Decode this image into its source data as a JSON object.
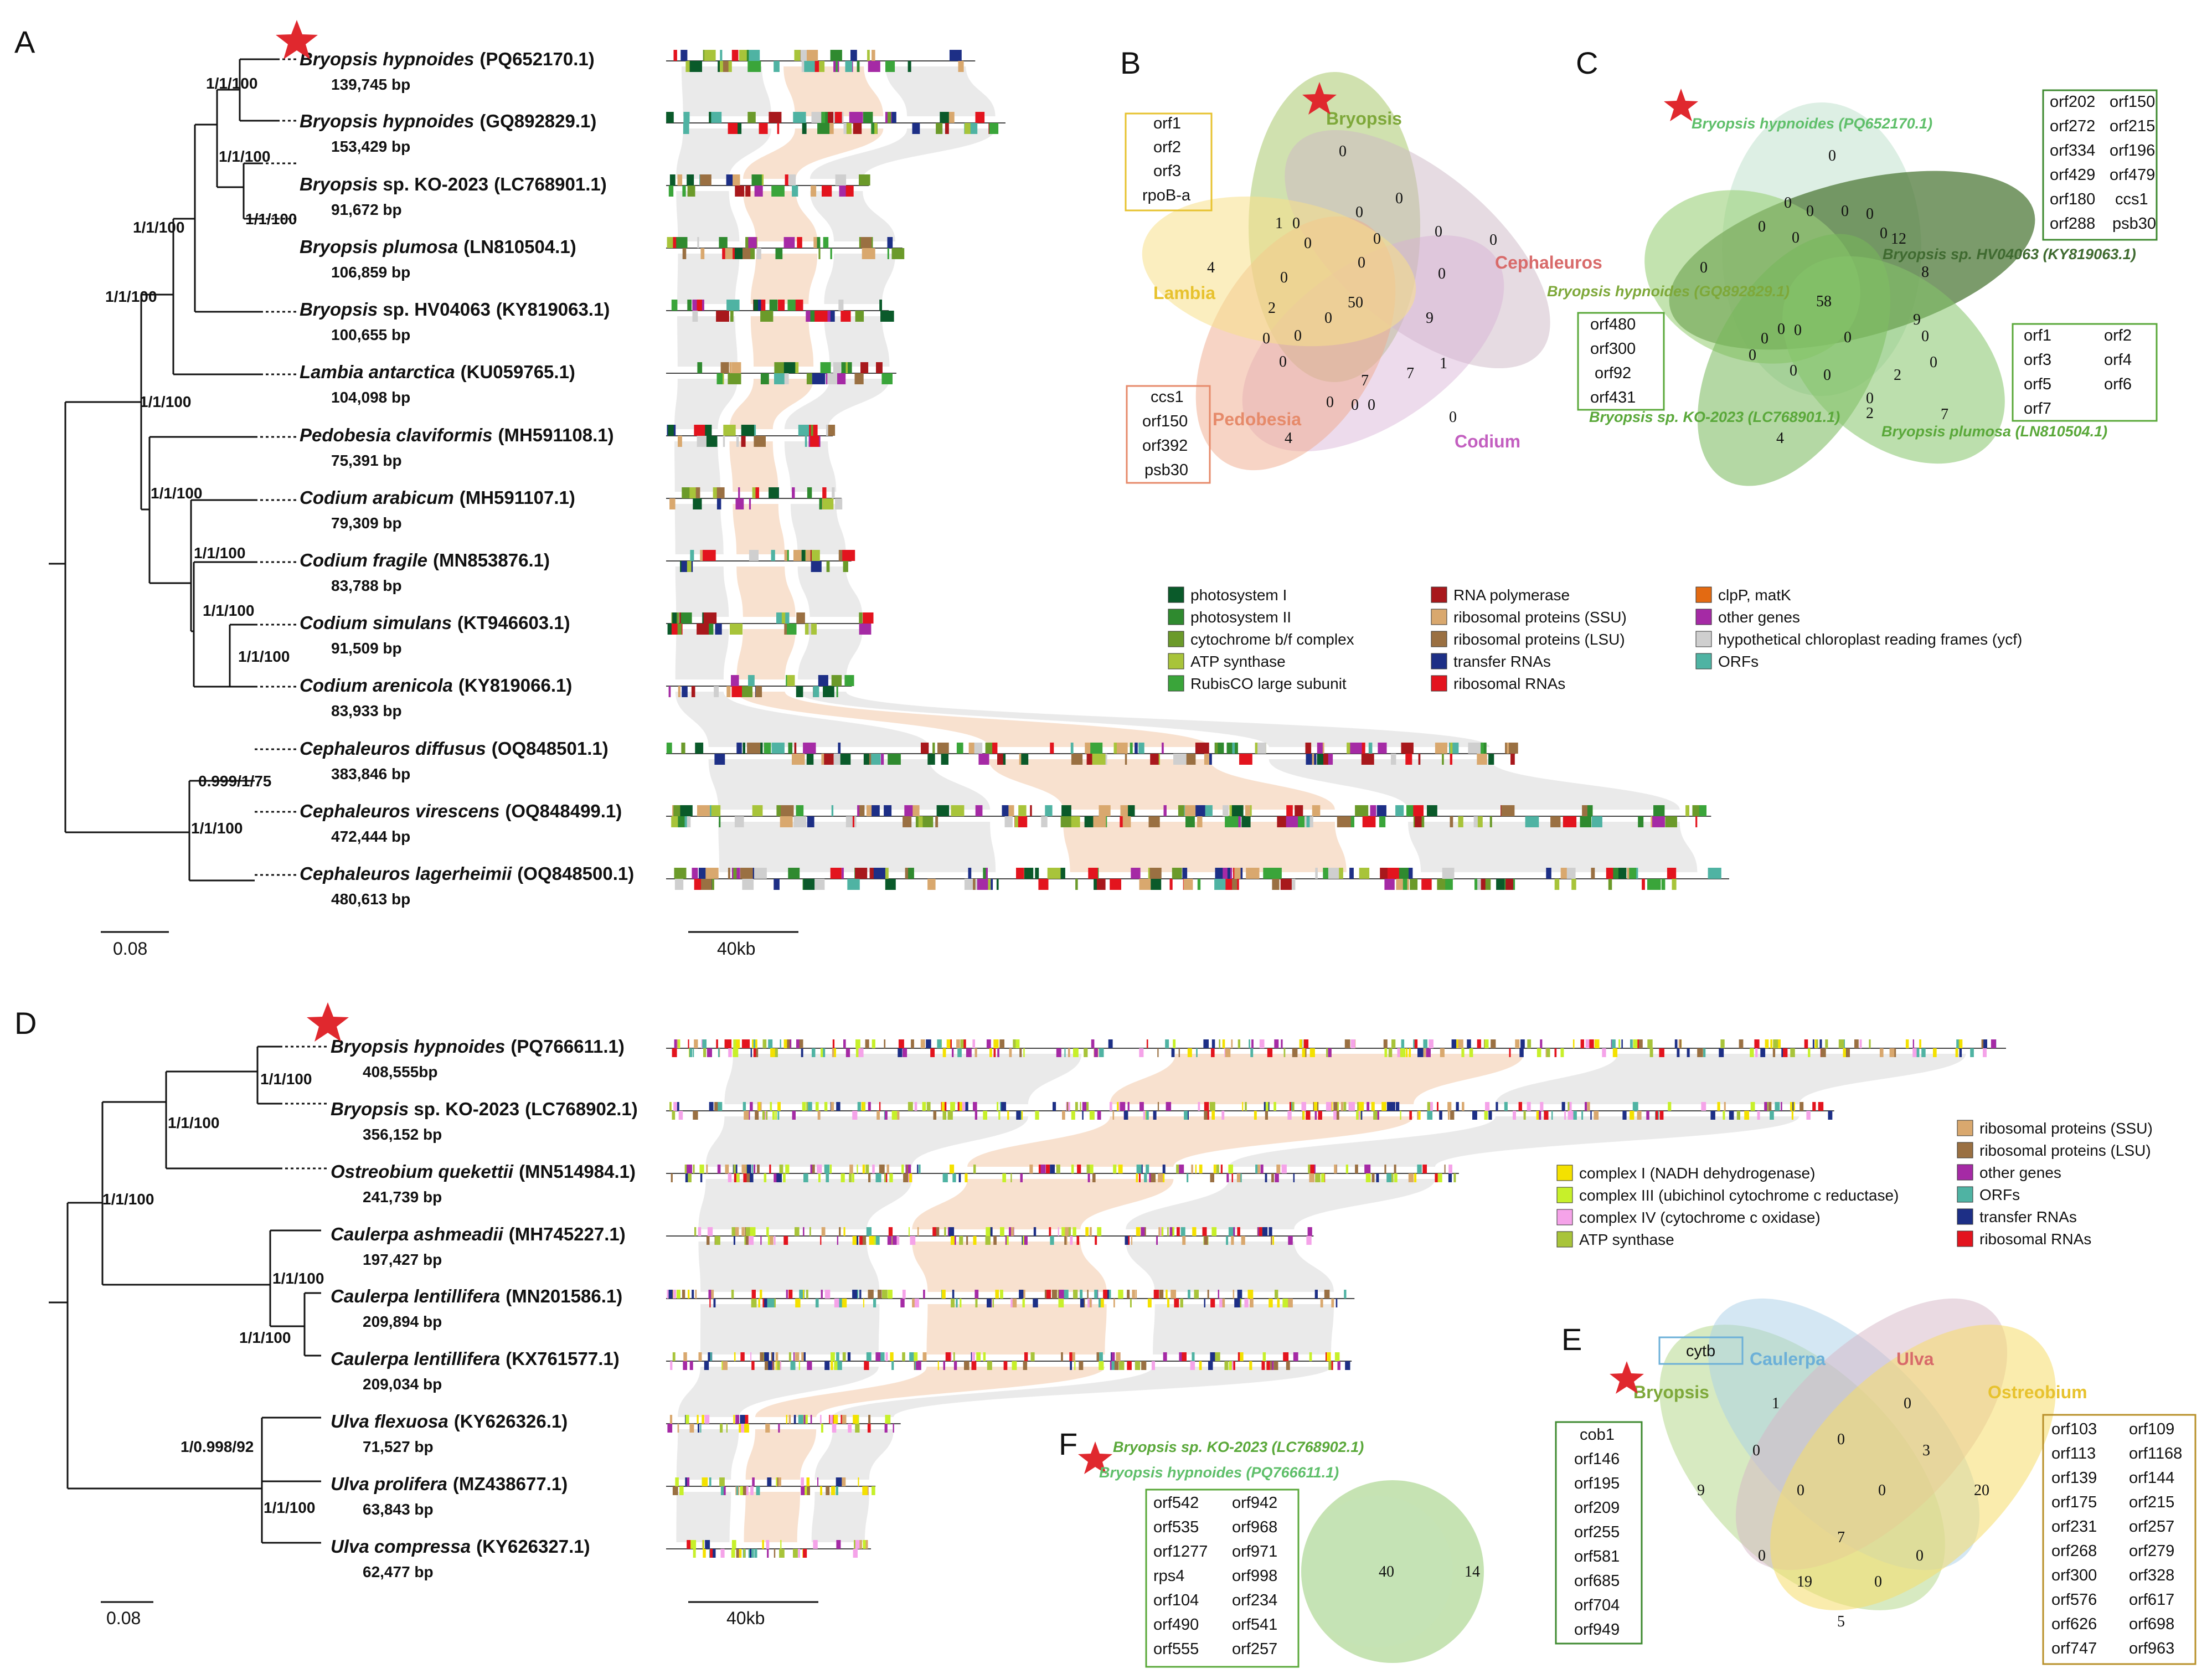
{
  "colors": {
    "photosystem_I": "#0a5a2a",
    "photosystem_II": "#2f8a2f",
    "cytochrome_bf": "#6b9a2a",
    "atp": "#a8c43a",
    "rubisco": "#3aa53a",
    "rna_pol": "#a8181c",
    "rib_ssu": "#d9a86e",
    "rib_lsu": "#9a7042",
    "trna": "#1d2f86",
    "rrna": "#e3141e",
    "clpp": "#e36a12",
    "other": "#a52aa5",
    "ycf": "#cfcfcf",
    "orfs": "#4fb3a3",
    "complex_I": "#f4e100",
    "complex_III": "#c7f02a",
    "complex_IV": "#f5a3e9",
    "star": "#e0282e",
    "green_box": "#3f8a30",
    "gold_box": "#b8902a"
  },
  "panels": [
    "A",
    "B",
    "C",
    "D",
    "E",
    "F"
  ],
  "panelA": {
    "taxa": [
      {
        "name": "Bryopsis hypnoides",
        "acc": "(PQ652170.1)",
        "bp": "139,745 bp",
        "len": 139745
      },
      {
        "name": "Bryopsis hypnoides",
        "acc": "(GQ892829.1)",
        "bp": "153,429 bp",
        "len": 153429
      },
      {
        "name": "Bryopsis",
        "sp": " sp. KO-2023",
        "acc": "(LC768901.1)",
        "bp": "91,672 bp",
        "len": 91672
      },
      {
        "name": "Bryopsis plumosa",
        "acc": "(LN810504.1)",
        "bp": "106,859 bp",
        "len": 106859
      },
      {
        "name": "Bryopsis",
        "sp": " sp. HV04063",
        "acc": "(KY819063.1)",
        "bp": "100,655 bp",
        "len": 100655
      },
      {
        "name": "Lambia antarctica",
        "acc": "(KU059765.1)",
        "bp": "104,098 bp",
        "len": 104098
      },
      {
        "name": "Pedobesia claviformis",
        "acc": "(MH591108.1)",
        "bp": "75,391 bp",
        "len": 75391
      },
      {
        "name": "Codium arabicum",
        "acc": "(MH591107.1)",
        "bp": "79,309 bp",
        "len": 79309
      },
      {
        "name": "Codium fragile",
        "acc": "(MN853876.1)",
        "bp": "83,788 bp",
        "len": 83788
      },
      {
        "name": "Codium simulans",
        "acc": "(KT946603.1)",
        "bp": "91,509 bp",
        "len": 91509
      },
      {
        "name": "Codium arenicola",
        "acc": "(KY819066.1)",
        "bp": "83,933 bp",
        "len": 83933
      },
      {
        "name": "Cephaleuros diffusus",
        "acc": "(OQ848501.1)",
        "bp": "383,846 bp",
        "len": 383846
      },
      {
        "name": "Cephaleuros virescens",
        "acc": "(OQ848499.1)",
        "bp": "472,444 bp",
        "len": 472444
      },
      {
        "name": "Cephaleuros lagerheimii",
        "acc": "(OQ848500.1)",
        "bp": "480,613 bp",
        "len": 480613
      }
    ],
    "supports": [
      "1/1/100",
      "1/1/100",
      "1/1/100",
      "1/1/100",
      "1/1/100",
      "1/1/100",
      "1/1/100",
      "1/1/100",
      "1/1/100",
      "1/1/100",
      "0.999/1/75",
      "1/1/100"
    ],
    "scale_tree": "0.08",
    "scale_map": "40kb",
    "legend": [
      {
        "key": "photosystem_I",
        "label": "photosystem I"
      },
      {
        "key": "photosystem_II",
        "label": "photosystem II"
      },
      {
        "key": "cytochrome_bf",
        "label": "cytochrome b/f complex"
      },
      {
        "key": "atp",
        "label": "ATP synthase"
      },
      {
        "key": "rubisco",
        "label": "RubisCO large subunit"
      },
      {
        "key": "rna_pol",
        "label": "RNA polymerase"
      },
      {
        "key": "rib_ssu",
        "label": "ribosomal proteins (SSU)"
      },
      {
        "key": "rib_lsu",
        "label": "ribosomal proteins (LSU)"
      },
      {
        "key": "trna",
        "label": "transfer RNAs"
      },
      {
        "key": "rrna",
        "label": "ribosomal RNAs"
      },
      {
        "key": "clpp",
        "label": "clpP, matK"
      },
      {
        "key": "other",
        "label": "other genes"
      },
      {
        "key": "ycf",
        "label": "hypothetical chloroplast reading frames (ycf)"
      },
      {
        "key": "orfs",
        "label": "ORFs"
      }
    ]
  },
  "panelB": {
    "sets": [
      "Bryopsis",
      "Cephaleuros",
      "Codium",
      "Pedobesia",
      "Lambia"
    ],
    "numbers": [
      "0",
      "0",
      "0",
      "0",
      "4",
      "1",
      "0",
      "0",
      "0",
      "50",
      "0",
      "9",
      "2",
      "0",
      "0",
      "0",
      "0",
      "7",
      "7",
      "1",
      "0",
      "0",
      "0",
      "0",
      "4",
      "0",
      "0",
      "0"
    ],
    "box_yellow": [
      "orf1",
      "orf2",
      "orf3",
      "rpoB-a"
    ],
    "box_salmon": [
      "ccs1",
      "orf150",
      "orf392",
      "psb30"
    ]
  },
  "panelC": {
    "sets": [
      "Bryopsis hypnoides (PQ652170.1)",
      "Bryopsis sp. HV04063 (KY819063.1)",
      "Bryopsis hypnoides (GQ892829.1)",
      "Bryopsis sp. KO-2023 (LC768901.1)",
      "Bryopsis plumosa (LN810504.1)"
    ],
    "numbers": [
      "0",
      "0",
      "0",
      "0",
      "0",
      "0",
      "12",
      "0",
      "0",
      "8",
      "0",
      "58",
      "9",
      "0",
      "0",
      "0",
      "0",
      "0",
      "0",
      "0",
      "2",
      "0",
      "2",
      "7",
      "4",
      "0",
      "0"
    ],
    "box_right_top": [
      "orf202",
      "orf150",
      "orf272",
      "orf215",
      "orf334",
      "orf196",
      "orf429",
      "orf479",
      "orf180",
      "ccs1",
      "orf288",
      "psb30"
    ],
    "box_left": [
      "orf480",
      "orf300",
      "orf92",
      "orf431"
    ],
    "box_right_bottom": [
      "orf1",
      "orf2",
      "orf3",
      "orf4",
      "orf5",
      "orf6",
      "orf7"
    ]
  },
  "panelD": {
    "taxa": [
      {
        "name": "Bryopsis hypnoides",
        "acc": "(PQ766611.1)",
        "bp": "408,555bp",
        "len": 408555
      },
      {
        "name": "Bryopsis",
        "sp": " sp. KO-2023",
        "acc": "(LC768902.1)",
        "bp": "356,152 bp",
        "len": 356152
      },
      {
        "name": "Ostreobium quekettii",
        "acc": "(MN514984.1)",
        "bp": "241,739 bp",
        "len": 241739
      },
      {
        "name": "Caulerpa ashmeadii",
        "acc": "(MH745227.1)",
        "bp": "197,427 bp",
        "len": 197427
      },
      {
        "name": "Caulerpa lentillifera",
        "acc": "(MN201586.1)",
        "bp": "209,894 bp",
        "len": 209894
      },
      {
        "name": "Caulerpa lentillifera",
        "acc": "(KX761577.1)",
        "bp": "209,034 bp",
        "len": 209034
      },
      {
        "name": "Ulva flexuosa",
        "acc": "(KY626326.1)",
        "bp": "71,527 bp",
        "len": 71527
      },
      {
        "name": "Ulva prolifera",
        "acc": "(MZ438677.1)",
        "bp": "63,843 bp",
        "len": 63843
      },
      {
        "name": "Ulva compressa",
        "acc": "(KY626327.1)",
        "bp": "62,477 bp",
        "len": 62477
      }
    ],
    "supports": [
      "1/1/100",
      "1/1/100",
      "1/1/100",
      "1/1/100",
      "1/1/100",
      "1/0.998/92",
      "1/1/100"
    ],
    "scale_tree": "0.08",
    "scale_map": "40kb",
    "legend": [
      {
        "key": "complex_I",
        "label": "complex I (NADH dehydrogenase)"
      },
      {
        "key": "complex_III",
        "label": "complex III (ubichinol cytochrome c reductase)"
      },
      {
        "key": "complex_IV",
        "label": "complex IV (cytochrome c oxidase)"
      },
      {
        "key": "atp",
        "label": "ATP synthase"
      },
      {
        "key": "rib_ssu",
        "label": "ribosomal proteins (SSU)"
      },
      {
        "key": "rib_lsu",
        "label": "ribosomal proteins (LSU)"
      },
      {
        "key": "other",
        "label": "other genes"
      },
      {
        "key": "orfs",
        "label": "ORFs"
      },
      {
        "key": "trna",
        "label": "transfer RNAs"
      },
      {
        "key": "rrna",
        "label": "ribosomal RNAs"
      }
    ]
  },
  "panelE": {
    "sets": [
      "Bryopsis",
      "Caulerpa",
      "Ulva",
      "Ostreobium"
    ],
    "numbers": [
      "1",
      "0",
      "0",
      "0",
      "3",
      "9",
      "0",
      "0",
      "20",
      "7",
      "0",
      "0",
      "19",
      "0",
      "5"
    ],
    "box_top": [
      "cytb"
    ],
    "box_left": [
      "cob1",
      "orf146",
      "orf195",
      "orf209",
      "orf255",
      "orf581",
      "orf685",
      "orf704",
      "orf949"
    ],
    "box_right": [
      "orf103",
      "orf109",
      "orf113",
      "orf1168",
      "orf139",
      "orf144",
      "orf175",
      "orf215",
      "orf231",
      "orf257",
      "orf268",
      "orf279",
      "orf300",
      "orf328",
      "orf576",
      "orf617",
      "orf626",
      "orf698",
      "orf747",
      "orf963"
    ]
  },
  "panelF": {
    "sets": [
      "Bryopsis sp. KO-2023 (LC768902.1)",
      "Bryopsis hypnoides (PQ766611.1)"
    ],
    "numbers": [
      "40",
      "14"
    ],
    "box": [
      "orf542",
      "orf942",
      "orf535",
      "orf968",
      "orf1277",
      "orf971",
      "rps4",
      "orf998",
      "orf104",
      "orf234",
      "orf490",
      "orf541",
      "orf555",
      "orf257"
    ]
  }
}
